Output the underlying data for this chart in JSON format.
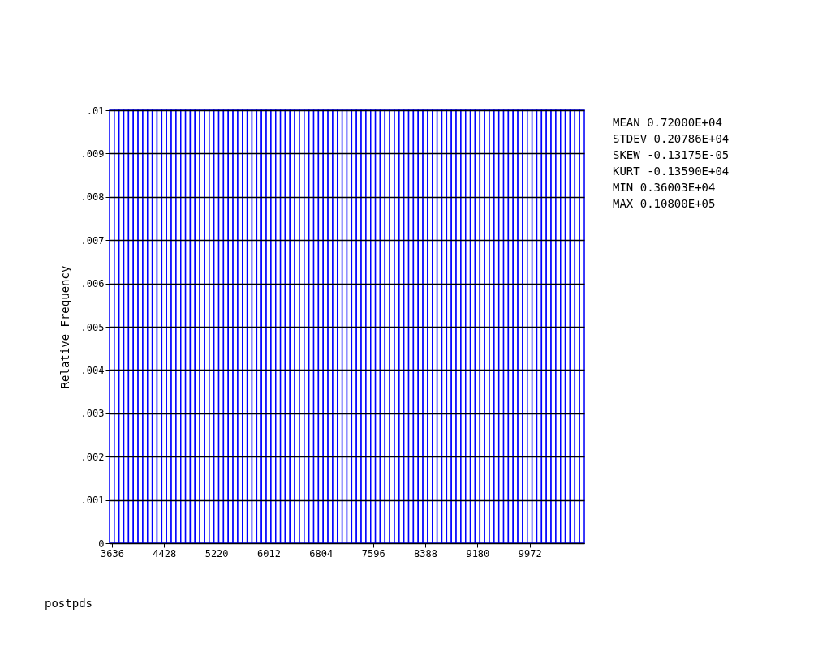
{
  "chart_data": {
    "type": "histogram",
    "ylabel": "Relative Frequency",
    "color": "#0000ff",
    "bins": [
      3600,
      3672,
      3744,
      3816,
      3888,
      3960,
      4032,
      4104,
      4176,
      4248,
      4320,
      4392,
      4464,
      4536,
      4608,
      4680,
      4752,
      4824,
      4896,
      4968,
      5040,
      5112,
      5184,
      5256,
      5328,
      5400,
      5472,
      5544,
      5616,
      5688,
      5760,
      5832,
      5904,
      5976,
      6048,
      6120,
      6192,
      6264,
      6336,
      6408,
      6480,
      6552,
      6624,
      6696,
      6768,
      6840,
      6912,
      6984,
      7056,
      7128,
      7200,
      7272,
      7344,
      7416,
      7488,
      7560,
      7632,
      7704,
      7776,
      7848,
      7920,
      7992,
      8064,
      8136,
      8208,
      8280,
      8352,
      8424,
      8496,
      8568,
      8640,
      8712,
      8784,
      8856,
      8928,
      9000,
      9072,
      9144,
      9216,
      9288,
      9360,
      9432,
      9504,
      9576,
      9648,
      9720,
      9792,
      9864,
      9936,
      10008,
      10080,
      10152,
      10224,
      10296,
      10368,
      10440,
      10512,
      10584,
      10656,
      10728,
      10800
    ],
    "values": [
      0.01,
      0.01,
      0.01,
      0.01,
      0.01,
      0.01,
      0.01,
      0.01,
      0.01,
      0.01,
      0.01,
      0.01,
      0.01,
      0.01,
      0.01,
      0.01,
      0.01,
      0.01,
      0.01,
      0.01,
      0.01,
      0.01,
      0.01,
      0.01,
      0.01,
      0.01,
      0.01,
      0.01,
      0.01,
      0.01,
      0.01,
      0.01,
      0.01,
      0.01,
      0.01,
      0.01,
      0.01,
      0.01,
      0.01,
      0.01,
      0.01,
      0.01,
      0.01,
      0.01,
      0.01,
      0.01,
      0.01,
      0.01,
      0.01,
      0.01,
      0.01,
      0.01,
      0.01,
      0.01,
      0.01,
      0.01,
      0.01,
      0.01,
      0.01,
      0.01,
      0.01,
      0.01,
      0.01,
      0.01,
      0.01,
      0.01,
      0.01,
      0.01,
      0.01,
      0.01,
      0.01,
      0.01,
      0.01,
      0.01,
      0.01,
      0.01,
      0.01,
      0.01,
      0.01,
      0.01,
      0.01,
      0.01,
      0.01,
      0.01,
      0.01,
      0.01,
      0.01,
      0.01,
      0.01,
      0.01,
      0.01,
      0.01,
      0.01,
      0.01,
      0.01,
      0.01,
      0.01,
      0.01,
      0.01,
      0.01
    ],
    "xlim": [
      3600,
      10800
    ],
    "xticks": [
      3636,
      4428,
      5220,
      6012,
      6804,
      7596,
      8388,
      9180,
      9972
    ],
    "ylim": [
      0,
      0.01
    ],
    "yticks": [
      0,
      {
        "value": 0.001,
        "label": ".001"
      },
      {
        "value": 0.002,
        "label": ".002"
      },
      {
        "value": 0.003,
        "label": ".003"
      },
      {
        "value": 0.004,
        "label": ".004"
      },
      {
        "value": 0.005,
        "label": ".005"
      },
      {
        "value": 0.006,
        "label": ".006"
      },
      {
        "value": 0.007,
        "label": ".007"
      },
      {
        "value": 0.008,
        "label": ".008"
      },
      {
        "value": 0.009,
        "label": ".009"
      },
      {
        "value": 0.01,
        "label": ".01"
      }
    ],
    "grid": "y",
    "annotations": [
      "MEAN 0.72000E+04",
      "STDEV 0.20786E+04",
      "SKEW -0.13175E-05",
      "KURT -0.13590E+04",
      "MIN 0.36003E+04",
      "MAX 0.10800E+05",
      "postpds"
    ]
  }
}
